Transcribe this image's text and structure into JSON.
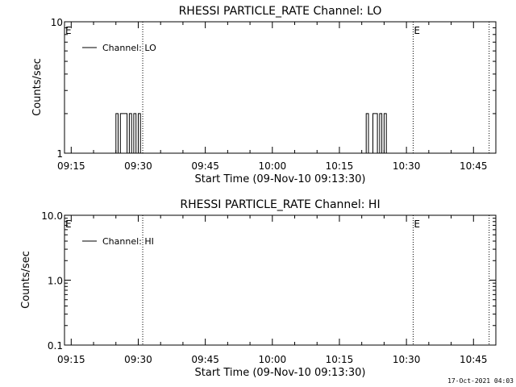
{
  "footer": {
    "timestamp": "17-Oct-2021 04:03"
  },
  "chart_data": [
    {
      "type": "line",
      "title": "RHESSI PARTICLE_RATE Channel: LO",
      "xlabel": "Start Time (09-Nov-10 09:13:30)",
      "ylabel": "Counts/sec",
      "yscale": "log",
      "ylim": [
        1,
        10
      ],
      "ytick_labels": [
        "1",
        "10"
      ],
      "xlim": [
        "09:13:30",
        "10:50:00"
      ],
      "xtick_labels": [
        "09:15",
        "09:30",
        "09:45",
        "10:00",
        "10:15",
        "10:30",
        "10:45"
      ],
      "legend": {
        "label": "Channel: LO",
        "placement": "top-left"
      },
      "eclipse_marker": "E",
      "vlines": [
        "09:31:00",
        "10:31:30",
        "10:48:30"
      ],
      "grid": false,
      "series": [
        {
          "x": [
            "09:24:30",
            "09:25:00",
            "09:25:30",
            "09:26:00",
            "09:26:30",
            "09:27:00",
            "09:27:30",
            "09:28:00",
            "09:28:30",
            "09:29:00",
            "09:29:30",
            "09:30:00",
            "09:30:30",
            "09:31:00",
            "10:20:30",
            "10:21:00",
            "10:21:30",
            "10:22:00",
            "10:22:30",
            "10:23:00",
            "10:23:30",
            "10:24:00",
            "10:24:30",
            "10:25:00",
            "10:25:30",
            "10:26:00"
          ],
          "y": [
            1,
            2,
            1,
            2,
            2,
            2,
            1,
            2,
            1,
            2,
            1,
            2,
            1,
            1,
            1,
            2,
            1,
            1,
            2,
            2,
            1,
            2,
            1,
            2,
            1,
            1
          ]
        }
      ]
    },
    {
      "type": "line",
      "title": "RHESSI PARTICLE_RATE Channel: HI",
      "xlabel": "Start Time (09-Nov-10 09:13:30)",
      "ylabel": "Counts/sec",
      "yscale": "log",
      "ylim": [
        0.1,
        10
      ],
      "ytick_labels": [
        "0.1",
        "1.0",
        "10.0"
      ],
      "xlim": [
        "09:13:30",
        "10:50:00"
      ],
      "xtick_labels": [
        "09:15",
        "09:30",
        "09:45",
        "10:00",
        "10:15",
        "10:30",
        "10:45"
      ],
      "legend": {
        "label": "Channel: HI",
        "placement": "top-left"
      },
      "eclipse_marker": "E",
      "vlines": [
        "09:31:00",
        "10:31:30",
        "10:48:30"
      ],
      "grid": false,
      "series": []
    }
  ]
}
